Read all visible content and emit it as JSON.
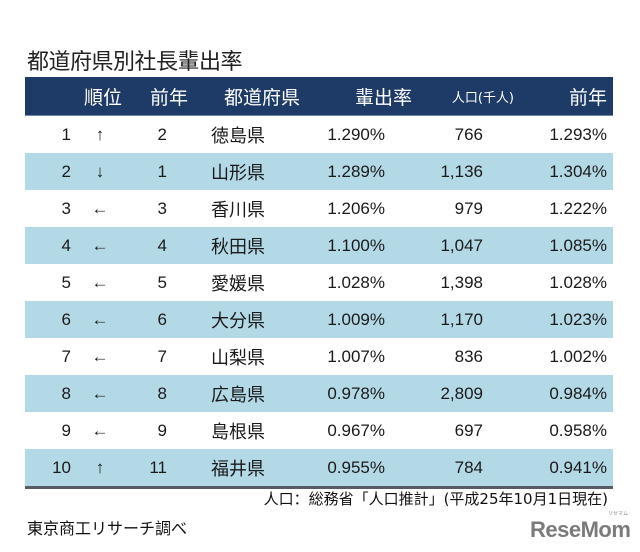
{
  "title": "都道府県別社長輩出率",
  "table": {
    "headers": {
      "rank": "順位",
      "prev_rank": "前年",
      "prefecture": "都道府県",
      "rate": "輩出率",
      "population": "人口(千人)",
      "prev_rate": "前年"
    },
    "rows": [
      {
        "rank": "1",
        "arrow": "↑",
        "prev_rank": "2",
        "prefecture": "徳島県",
        "rate": "1.290%",
        "population": "766",
        "prev_rate": "1.293%"
      },
      {
        "rank": "2",
        "arrow": "↓",
        "prev_rank": "1",
        "prefecture": "山形県",
        "rate": "1.289%",
        "population": "1,136",
        "prev_rate": "1.304%"
      },
      {
        "rank": "3",
        "arrow": "←",
        "prev_rank": "3",
        "prefecture": "香川県",
        "rate": "1.206%",
        "population": "979",
        "prev_rate": "1.222%"
      },
      {
        "rank": "4",
        "arrow": "←",
        "prev_rank": "4",
        "prefecture": "秋田県",
        "rate": "1.100%",
        "population": "1,047",
        "prev_rate": "1.085%"
      },
      {
        "rank": "5",
        "arrow": "←",
        "prev_rank": "5",
        "prefecture": "愛媛県",
        "rate": "1.028%",
        "population": "1,398",
        "prev_rate": "1.028%"
      },
      {
        "rank": "6",
        "arrow": "←",
        "prev_rank": "6",
        "prefecture": "大分県",
        "rate": "1.009%",
        "population": "1,170",
        "prev_rate": "1.023%"
      },
      {
        "rank": "7",
        "arrow": "←",
        "prev_rank": "7",
        "prefecture": "山梨県",
        "rate": "1.007%",
        "population": "836",
        "prev_rate": "1.002%"
      },
      {
        "rank": "8",
        "arrow": "←",
        "prev_rank": "8",
        "prefecture": "広島県",
        "rate": "0.978%",
        "population": "2,809",
        "prev_rate": "0.984%"
      },
      {
        "rank": "9",
        "arrow": "←",
        "prev_rank": "9",
        "prefecture": "島根県",
        "rate": "0.967%",
        "population": "697",
        "prev_rate": "0.958%"
      },
      {
        "rank": "10",
        "arrow": "↑",
        "prev_rank": "11",
        "prefecture": "福井県",
        "rate": "0.955%",
        "population": "784",
        "prev_rate": "0.941%"
      }
    ]
  },
  "note": "人口：総務省「人口推計」(平成25年10月1日現在)",
  "source": "東京商工リサーチ調べ",
  "logo": {
    "text": "ReseMom",
    "ruby": "リセマム"
  },
  "colors": {
    "header_bg": "#1e3a66",
    "alt_row_bg": "#b3d8e6",
    "rule": "#555c63",
    "logo": "#7b7b7b"
  }
}
